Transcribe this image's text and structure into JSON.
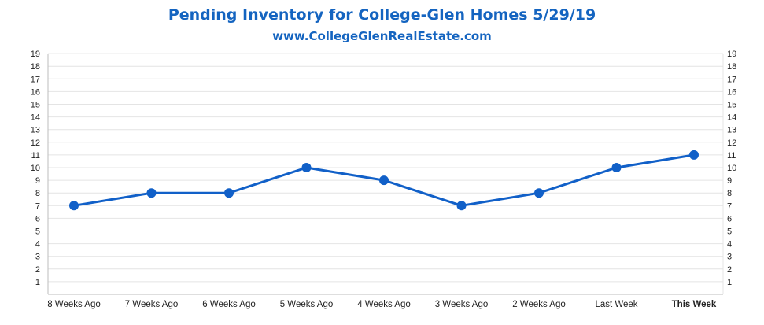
{
  "chart_data": {
    "type": "line",
    "title": "Pending Inventory for College-Glen Homes 5/29/19",
    "subtitle": "www.CollegeGlenRealEstate.com",
    "categories": [
      "8 Weeks Ago",
      "7 Weeks Ago",
      "6 Weeks Ago",
      "5 Weeks Ago",
      "4 Weeks Ago",
      "3 Weeks Ago",
      "2 Weeks Ago",
      "Last Week",
      "This Week"
    ],
    "series": [
      {
        "values": [
          7,
          8,
          8,
          10,
          9,
          7,
          8,
          10,
          11
        ]
      }
    ],
    "yticks": [
      1,
      2,
      3,
      4,
      5,
      6,
      7,
      8,
      9,
      10,
      11,
      12,
      13,
      14,
      15,
      16,
      17,
      18,
      19
    ],
    "ylim": [
      0,
      19
    ],
    "grid": true,
    "highlight_category": "This Week",
    "colors": {
      "line": "#1160c8",
      "marker": "#1160c8",
      "title": "#1464c0",
      "highlight": "#1464c0",
      "grid": "#e4e4e4"
    }
  }
}
